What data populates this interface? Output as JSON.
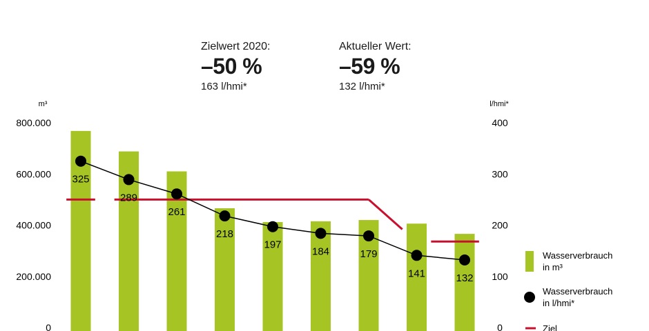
{
  "kpis": {
    "target": {
      "label": "Zielwert 2020:",
      "value": "–50 %",
      "sub": "163 l/hmi*"
    },
    "current": {
      "label": "Aktueller Wert:",
      "value": "–59 %",
      "sub": "132 l/hmi*"
    }
  },
  "chart_data": {
    "type": "bar",
    "categories": [
      "",
      "",
      "",
      "",
      "",
      "",
      "",
      "",
      ""
    ],
    "series": [
      {
        "name": "Wasserverbrauch in m³",
        "kind": "bar",
        "axis": "left",
        "color": "#a6c524",
        "values": [
          768000,
          688000,
          610000,
          466000,
          412000,
          415000,
          420000,
          406000,
          366000
        ]
      },
      {
        "name": "Wasserverbrauch in l/hmi*",
        "kind": "line",
        "axis": "right",
        "color": "#000000",
        "values": [
          325,
          289,
          261,
          218,
          197,
          184,
          179,
          141,
          132
        ],
        "labels": [
          "325",
          "289",
          "261",
          "218",
          "197",
          "184",
          "179",
          "141",
          "132"
        ]
      },
      {
        "name": "Ziel",
        "kind": "line",
        "axis": "right",
        "color": "#c8102e",
        "segments": [
          {
            "x": [
              -0.3,
              0.3
            ],
            "y": [
              250,
              250
            ]
          },
          {
            "x": [
              0.7,
              6.0
            ],
            "y": [
              250,
              250
            ]
          },
          {
            "x": [
              6.0,
              6.7
            ],
            "y": [
              250,
              192
            ]
          },
          {
            "x": [
              7.3,
              8.3
            ],
            "y": [
              168,
              168
            ]
          }
        ]
      }
    ],
    "left_axis": {
      "unit": "m³",
      "ylim": [
        0,
        800000
      ],
      "ticks": [
        "800.000",
        "600.000",
        "400.000",
        "200.000",
        "0"
      ],
      "tick_values": [
        800000,
        600000,
        400000,
        200000,
        0
      ]
    },
    "right_axis": {
      "unit": "l/hmi*",
      "ylim": [
        0,
        400
      ],
      "ticks": [
        "400",
        "300",
        "200",
        "100",
        "0"
      ],
      "tick_values": [
        400,
        300,
        200,
        100,
        0
      ]
    },
    "legend": [
      {
        "text_line1": "Wasserverbrauch",
        "text_line2": "in m³",
        "marker": "bar"
      },
      {
        "text_line1": "Wasserverbrauch",
        "text_line2": "in l/hmi*",
        "marker": "dot"
      },
      {
        "text_line1": "Ziel",
        "text_line2": "",
        "marker": "dash"
      }
    ],
    "grid": false,
    "legend_position": "right"
  }
}
